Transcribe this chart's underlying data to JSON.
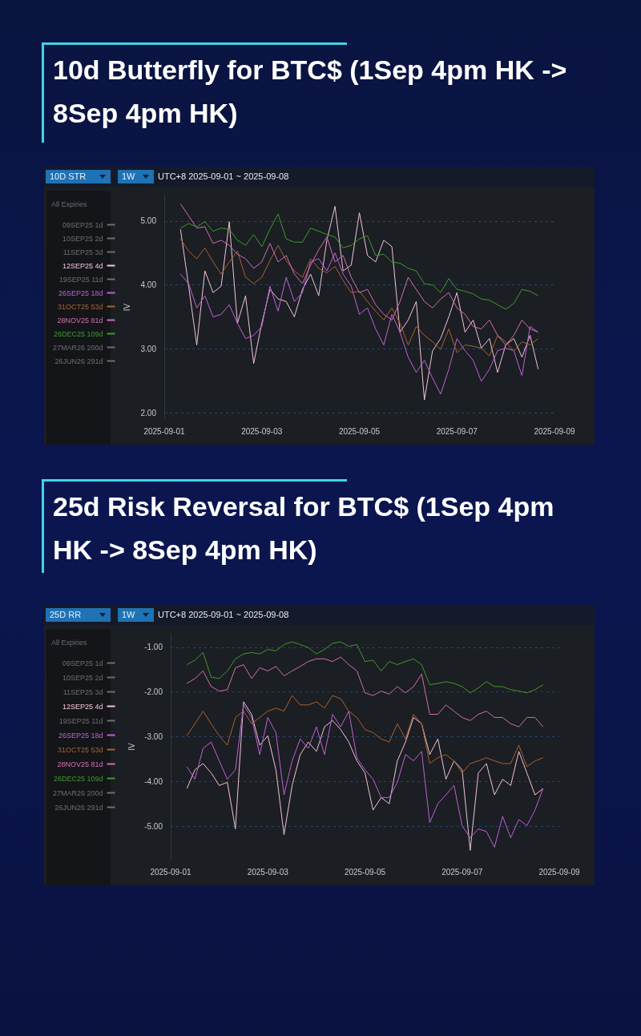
{
  "chart_data": [
    {
      "type": "line",
      "title": "10d Butterfly for BTC$ (1Sep 4pm HK -> 8Sep 4pm HK)",
      "ylabel": "IV",
      "legend_title": "All Expiries",
      "legend": "left",
      "grid": "y",
      "marker": "none",
      "line_style": "solid",
      "annotations": [
        "10D STR",
        "1W",
        "UTC+8 2025-09-01 ~ 2025-09-08"
      ],
      "xlim": [
        "2025-09-01",
        "2025-09-09"
      ],
      "xticks": [
        "2025-09-01",
        "2025-09-03",
        "2025-09-05",
        "2025-09-07",
        "2025-09-09"
      ],
      "ylim": [
        1.9,
        5.4
      ],
      "yticks": [
        {
          "value": 2,
          "label": "2.00"
        },
        {
          "value": 3,
          "label": "3.00"
        },
        {
          "value": 4,
          "label": "4.00"
        },
        {
          "value": 5,
          "label": "5.00"
        }
      ],
      "x": [
        "2025-09-01T08:00",
        "2025-09-01T12:00",
        "2025-09-01T16:00",
        "2025-09-01T20:00",
        "2025-09-02T00:00",
        "2025-09-02T04:00",
        "2025-09-02T08:00",
        "2025-09-02T12:00",
        "2025-09-02T16:00",
        "2025-09-02T20:00",
        "2025-09-03T00:00",
        "2025-09-03T04:00",
        "2025-09-03T08:00",
        "2025-09-03T12:00",
        "2025-09-03T16:00",
        "2025-09-03T20:00",
        "2025-09-04T00:00",
        "2025-09-04T04:00",
        "2025-09-04T08:00",
        "2025-09-04T12:00",
        "2025-09-04T16:00",
        "2025-09-04T20:00",
        "2025-09-05T00:00",
        "2025-09-05T04:00",
        "2025-09-05T08:00",
        "2025-09-05T12:00",
        "2025-09-05T16:00",
        "2025-09-05T20:00",
        "2025-09-06T00:00",
        "2025-09-06T04:00",
        "2025-09-06T08:00",
        "2025-09-06T12:00",
        "2025-09-06T16:00",
        "2025-09-06T20:00",
        "2025-09-07T00:00",
        "2025-09-07T04:00",
        "2025-09-07T08:00",
        "2025-09-07T12:00",
        "2025-09-07T16:00",
        "2025-09-07T20:00",
        "2025-09-08T00:00",
        "2025-09-08T04:00",
        "2025-09-08T08:00",
        "2025-09-08T12:00",
        "2025-09-08T16:00"
      ],
      "series": [
        {
          "name": "09SEP25 1d",
          "color": "#6e6e6e",
          "values": [
            null,
            null,
            null,
            null,
            null,
            null,
            null,
            null,
            null,
            null,
            null,
            null,
            null,
            null,
            null,
            null,
            null,
            null,
            null,
            null,
            null,
            null,
            null,
            null,
            null,
            null,
            null,
            null,
            null,
            null,
            null,
            null,
            null,
            null,
            null,
            null,
            null,
            null,
            null,
            null,
            null,
            null,
            null,
            null,
            null
          ]
        },
        {
          "name": "10SEP25 2d",
          "color": "#6e6e6e",
          "values": [
            null,
            null,
            null,
            null,
            null,
            null,
            null,
            null,
            null,
            null,
            null,
            null,
            null,
            null,
            null,
            null,
            null,
            null,
            null,
            null,
            null,
            null,
            null,
            null,
            null,
            null,
            null,
            null,
            null,
            null,
            null,
            null,
            null,
            null,
            null,
            null,
            null,
            null,
            null,
            null,
            null,
            null,
            null,
            null,
            null
          ]
        },
        {
          "name": "11SEP25 3d",
          "color": "#6e6e6e",
          "values": [
            null,
            null,
            null,
            null,
            null,
            null,
            null,
            null,
            null,
            null,
            null,
            null,
            null,
            null,
            null,
            null,
            null,
            null,
            null,
            null,
            null,
            null,
            null,
            null,
            null,
            null,
            null,
            null,
            null,
            null,
            null,
            null,
            null,
            null,
            null,
            null,
            null,
            null,
            null,
            null,
            null,
            null,
            null,
            null,
            null
          ]
        },
        {
          "name": "12SEP25 4d",
          "color": "#f2c4d8",
          "values": [
            4.87,
            3.98,
            3.06,
            4.22,
            3.88,
            3.98,
            4.99,
            3.4,
            3.83,
            2.77,
            3.4,
            3.93,
            3.78,
            3.74,
            3.5,
            3.93,
            4.17,
            3.83,
            4.7,
            5.23,
            4.22,
            4.31,
            5.13,
            4.46,
            4.36,
            4.7,
            4.6,
            3.26,
            3.45,
            3.74,
            2.2,
            2.97,
            3.16,
            3.5,
            3.88,
            3.26,
            3.45,
            3.01,
            3.16,
            2.63,
            3.06,
            3.16,
            2.87,
            3.21,
            2.68
          ]
        },
        {
          "name": "19SEP25 11d",
          "color": "#6e6e6e",
          "values": [
            null,
            null,
            null,
            null,
            null,
            null,
            null,
            null,
            null,
            null,
            null,
            null,
            null,
            null,
            null,
            null,
            null,
            null,
            null,
            null,
            null,
            null,
            null,
            null,
            null,
            null,
            null,
            null,
            null,
            null,
            null,
            null,
            null,
            null,
            null,
            null,
            null,
            null,
            null,
            null,
            null,
            null,
            null,
            null,
            null
          ]
        },
        {
          "name": "26SEP25 18d",
          "color": "#c061d6",
          "values": [
            4.17,
            4.02,
            3.64,
            3.83,
            3.5,
            3.54,
            3.69,
            3.4,
            3.16,
            3.21,
            3.35,
            3.98,
            3.59,
            4.12,
            3.74,
            3.88,
            4.36,
            4.41,
            4.22,
            4.5,
            4.17,
            3.98,
            3.54,
            3.64,
            3.31,
            3.06,
            3.54,
            3.26,
            2.87,
            2.63,
            2.82,
            2.54,
            2.29,
            2.68,
            3.16,
            2.97,
            2.82,
            2.49,
            2.68,
            2.97,
            3.01,
            2.97,
            2.58,
            3.35,
            3.26
          ]
        },
        {
          "name": "31OCT25 53d",
          "color": "#a9632e",
          "values": [
            4.72,
            4.53,
            4.41,
            4.58,
            4.36,
            4.17,
            4.36,
            4.53,
            4.12,
            4.02,
            4.12,
            4.38,
            4.62,
            4.38,
            4.22,
            4.12,
            4.41,
            4.26,
            4.19,
            4.29,
            4.07,
            3.88,
            3.9,
            3.74,
            3.59,
            3.45,
            3.64,
            3.4,
            3.06,
            3.35,
            3.21,
            3.11,
            2.99,
            3.31,
            2.94,
            3.06,
            3.04,
            3.01,
            2.89,
            3.21,
            3.11,
            2.96,
            3.11,
            3.06,
            3.16
          ]
        },
        {
          "name": "28NOV25 81d",
          "color": "#d46fb2",
          "values": [
            5.27,
            5.08,
            4.89,
            4.91,
            4.65,
            4.7,
            4.62,
            4.48,
            4.41,
            4.26,
            4.36,
            4.65,
            4.36,
            4.46,
            4.17,
            4.02,
            4.31,
            4.55,
            4.75,
            4.36,
            4.46,
            4.12,
            3.88,
            3.93,
            3.69,
            3.54,
            3.45,
            3.74,
            4.12,
            3.93,
            3.74,
            3.64,
            3.78,
            3.88,
            3.64,
            3.54,
            3.35,
            3.31,
            3.45,
            3.21,
            3.06,
            3.21,
            3.45,
            3.31,
            3.26
          ]
        },
        {
          "name": "26DEC25 109d",
          "color": "#3f9a2c",
          "values": [
            4.89,
            4.96,
            4.91,
            4.99,
            4.84,
            4.89,
            4.87,
            4.7,
            4.62,
            4.79,
            4.6,
            4.87,
            5.11,
            4.72,
            4.67,
            4.67,
            4.89,
            4.84,
            4.79,
            4.75,
            4.58,
            4.62,
            4.72,
            4.77,
            4.46,
            4.48,
            4.36,
            4.34,
            4.26,
            4.22,
            4.02,
            4.0,
            3.88,
            4.1,
            3.93,
            3.9,
            3.86,
            3.78,
            3.76,
            3.69,
            3.62,
            3.71,
            3.93,
            3.9,
            3.83
          ]
        },
        {
          "name": "27MAR26 200d",
          "color": "#6e6e6e",
          "values": [
            null,
            null,
            null,
            null,
            null,
            null,
            null,
            null,
            null,
            null,
            null,
            null,
            null,
            null,
            null,
            null,
            null,
            null,
            null,
            null,
            null,
            null,
            null,
            null,
            null,
            null,
            null,
            null,
            null,
            null,
            null,
            null,
            null,
            null,
            null,
            null,
            null,
            null,
            null,
            null,
            null,
            null,
            null,
            null,
            null
          ]
        },
        {
          "name": "26JUN26 291d",
          "color": "#6e6e6e",
          "values": [
            null,
            null,
            null,
            null,
            null,
            null,
            null,
            null,
            null,
            null,
            null,
            null,
            null,
            null,
            null,
            null,
            null,
            null,
            null,
            null,
            null,
            null,
            null,
            null,
            null,
            null,
            null,
            null,
            null,
            null,
            null,
            null,
            null,
            null,
            null,
            null,
            null,
            null,
            null,
            null,
            null,
            null,
            null,
            null,
            null
          ]
        }
      ]
    },
    {
      "type": "line",
      "title": "25d Risk Reversal for BTC$ (1Sep 4pm HK -> 8Sep 4pm HK)",
      "ylabel": "IV",
      "legend_title": "All Expiries",
      "legend": "left",
      "grid": "y",
      "marker": "none",
      "line_style": "solid",
      "annotations": [
        "25D RR",
        "1W",
        "UTC+8 2025-09-01 ~ 2025-09-08"
      ],
      "xlim": [
        "2025-09-01",
        "2025-09-09"
      ],
      "xticks": [
        "2025-09-01",
        "2025-09-03",
        "2025-09-05",
        "2025-09-07",
        "2025-09-09"
      ],
      "ylim": [
        -5.75,
        -0.7
      ],
      "yticks": [
        {
          "value": -5,
          "label": "-5.00"
        },
        {
          "value": -4,
          "label": "-4.00"
        },
        {
          "value": -3,
          "label": "-3.00"
        },
        {
          "value": -2,
          "label": "-2.00"
        },
        {
          "value": -1,
          "label": "-1.00"
        }
      ],
      "x": [
        "2025-09-01T08:00",
        "2025-09-01T12:00",
        "2025-09-01T16:00",
        "2025-09-01T20:00",
        "2025-09-02T00:00",
        "2025-09-02T04:00",
        "2025-09-02T08:00",
        "2025-09-02T12:00",
        "2025-09-02T16:00",
        "2025-09-02T20:00",
        "2025-09-03T00:00",
        "2025-09-03T04:00",
        "2025-09-03T08:00",
        "2025-09-03T12:00",
        "2025-09-03T16:00",
        "2025-09-03T20:00",
        "2025-09-04T00:00",
        "2025-09-04T04:00",
        "2025-09-04T08:00",
        "2025-09-04T12:00",
        "2025-09-04T16:00",
        "2025-09-04T20:00",
        "2025-09-05T00:00",
        "2025-09-05T04:00",
        "2025-09-05T08:00",
        "2025-09-05T12:00",
        "2025-09-05T16:00",
        "2025-09-05T20:00",
        "2025-09-06T00:00",
        "2025-09-06T04:00",
        "2025-09-06T08:00",
        "2025-09-06T12:00",
        "2025-09-06T16:00",
        "2025-09-06T20:00",
        "2025-09-07T00:00",
        "2025-09-07T04:00",
        "2025-09-07T08:00",
        "2025-09-07T12:00",
        "2025-09-07T16:00",
        "2025-09-07T20:00",
        "2025-09-08T00:00",
        "2025-09-08T04:00",
        "2025-09-08T08:00",
        "2025-09-08T12:00",
        "2025-09-08T16:00"
      ],
      "series": [
        {
          "name": "09SEP25 1d",
          "color": "#6e6e6e",
          "values": [
            null,
            null,
            null,
            null,
            null,
            null,
            null,
            null,
            null,
            null,
            null,
            null,
            null,
            null,
            null,
            null,
            null,
            null,
            null,
            null,
            null,
            null,
            null,
            null,
            null,
            null,
            null,
            null,
            null,
            null,
            null,
            null,
            null,
            null,
            null,
            null,
            null,
            null,
            null,
            null,
            null,
            null,
            null,
            null,
            null
          ]
        },
        {
          "name": "10SEP25 2d",
          "color": "#6e6e6e",
          "values": [
            null,
            null,
            null,
            null,
            null,
            null,
            null,
            null,
            null,
            null,
            null,
            null,
            null,
            null,
            null,
            null,
            null,
            null,
            null,
            null,
            null,
            null,
            null,
            null,
            null,
            null,
            null,
            null,
            null,
            null,
            null,
            null,
            null,
            null,
            null,
            null,
            null,
            null,
            null,
            null,
            null,
            null,
            null,
            null,
            null
          ]
        },
        {
          "name": "11SEP25 3d",
          "color": "#6e6e6e",
          "values": [
            null,
            null,
            null,
            null,
            null,
            null,
            null,
            null,
            null,
            null,
            null,
            null,
            null,
            null,
            null,
            null,
            null,
            null,
            null,
            null,
            null,
            null,
            null,
            null,
            null,
            null,
            null,
            null,
            null,
            null,
            null,
            null,
            null,
            null,
            null,
            null,
            null,
            null,
            null,
            null,
            null,
            null,
            null,
            null,
            null
          ]
        },
        {
          "name": "12SEP25 4d",
          "color": "#f2c4d8",
          "values": [
            -4.16,
            -3.74,
            -3.6,
            -3.81,
            -4.09,
            -4.02,
            -5.06,
            -2.22,
            -2.5,
            -3.19,
            -2.98,
            -3.74,
            -5.19,
            -4.09,
            -3.4,
            -3.12,
            -3.33,
            -2.78,
            -2.64,
            -2.84,
            -3.12,
            -3.54,
            -3.81,
            -4.64,
            -4.36,
            -4.5,
            -3.54,
            -3.12,
            -2.57,
            -2.71,
            -3.4,
            -3.05,
            -3.95,
            -3.54,
            -3.74,
            -5.54,
            -3.81,
            -3.6,
            -4.3,
            -3.95,
            -4.09,
            -3.33,
            -3.81,
            -4.3,
            -4.16
          ]
        },
        {
          "name": "19SEP25 11d",
          "color": "#6e6e6e",
          "values": [
            null,
            null,
            null,
            null,
            null,
            null,
            null,
            null,
            null,
            null,
            null,
            null,
            null,
            null,
            null,
            null,
            null,
            null,
            null,
            null,
            null,
            null,
            null,
            null,
            null,
            null,
            null,
            null,
            null,
            null,
            null,
            null,
            null,
            null,
            null,
            null,
            null,
            null,
            null,
            null,
            null,
            null,
            null,
            null,
            null
          ]
        },
        {
          "name": "26SEP25 18d",
          "color": "#c061d6",
          "values": [
            -3.67,
            -3.95,
            -3.26,
            -3.12,
            -3.54,
            -3.95,
            -3.74,
            -2.29,
            -2.57,
            -3.4,
            -2.57,
            -2.91,
            -4.3,
            -3.54,
            -3.05,
            -3.26,
            -2.78,
            -3.4,
            -2.5,
            -2.78,
            -2.43,
            -3.47,
            -3.74,
            -3.95,
            -4.36,
            -4.36,
            -4.02,
            -3.4,
            -3.54,
            -3.33,
            -4.92,
            -4.5,
            -4.3,
            -4.09,
            -4.99,
            -5.26,
            -5.06,
            -5.12,
            -5.47,
            -4.78,
            -5.26,
            -4.85,
            -4.99,
            -4.64,
            -4.16
          ]
        },
        {
          "name": "31OCT25 53d",
          "color": "#a9632e",
          "values": [
            -2.98,
            -2.71,
            -2.43,
            -2.71,
            -2.98,
            -3.19,
            -2.57,
            -2.43,
            -2.71,
            -2.57,
            -2.43,
            -2.36,
            -2.43,
            -2.08,
            -2.29,
            -2.29,
            -2.22,
            -2.36,
            -2.08,
            -2.15,
            -2.43,
            -2.57,
            -2.84,
            -2.91,
            -3.05,
            -3.12,
            -2.71,
            -3.05,
            -2.5,
            -2.71,
            -3.6,
            -3.47,
            -3.4,
            -3.54,
            -3.81,
            -3.6,
            -3.54,
            -3.47,
            -3.54,
            -3.6,
            -3.6,
            -3.19,
            -3.67,
            -3.54,
            -3.47
          ]
        },
        {
          "name": "28NOV25 81d",
          "color": "#d46fb2",
          "values": [
            -1.81,
            -1.7,
            -1.53,
            -1.88,
            -1.98,
            -1.95,
            -1.46,
            -1.39,
            -1.7,
            -1.46,
            -1.53,
            -1.43,
            -1.64,
            -1.53,
            -1.43,
            -1.32,
            -1.26,
            -1.26,
            -1.32,
            -1.22,
            -1.39,
            -1.53,
            -2.02,
            -2.08,
            -1.98,
            -2.05,
            -1.88,
            -2.02,
            -1.88,
            -1.6,
            -2.5,
            -2.5,
            -2.29,
            -2.43,
            -2.57,
            -2.64,
            -2.5,
            -2.43,
            -2.57,
            -2.57,
            -2.71,
            -2.78,
            -2.57,
            -2.57,
            -2.78
          ]
        },
        {
          "name": "26DEC25 109d",
          "color": "#3f9a2c",
          "values": [
            -1.39,
            -1.29,
            -1.12,
            -1.67,
            -1.7,
            -1.53,
            -1.26,
            -1.15,
            -1.12,
            -1.15,
            -1.05,
            -1.08,
            -0.94,
            -0.88,
            -0.94,
            -1.01,
            -1.15,
            -1.05,
            -0.91,
            -0.88,
            -0.98,
            -0.94,
            -1.32,
            -1.29,
            -1.53,
            -1.32,
            -1.39,
            -1.32,
            -1.26,
            -1.39,
            -1.84,
            -1.81,
            -1.77,
            -1.81,
            -1.88,
            -2.02,
            -1.91,
            -1.77,
            -1.88,
            -1.88,
            -1.95,
            -1.98,
            -2.02,
            -1.95,
            -1.84
          ]
        },
        {
          "name": "27MAR26 200d",
          "color": "#6e6e6e",
          "values": [
            null,
            null,
            null,
            null,
            null,
            null,
            null,
            null,
            null,
            null,
            null,
            null,
            null,
            null,
            null,
            null,
            null,
            null,
            null,
            null,
            null,
            null,
            null,
            null,
            null,
            null,
            null,
            null,
            null,
            null,
            null,
            null,
            null,
            null,
            null,
            null,
            null,
            null,
            null,
            null,
            null,
            null,
            null,
            null,
            null
          ]
        },
        {
          "name": "26JUN26 291d",
          "color": "#6e6e6e",
          "values": [
            null,
            null,
            null,
            null,
            null,
            null,
            null,
            null,
            null,
            null,
            null,
            null,
            null,
            null,
            null,
            null,
            null,
            null,
            null,
            null,
            null,
            null,
            null,
            null,
            null,
            null,
            null,
            null,
            null,
            null,
            null,
            null,
            null,
            null,
            null,
            null,
            null,
            null,
            null,
            null,
            null,
            null,
            null,
            null,
            null
          ]
        }
      ]
    }
  ]
}
